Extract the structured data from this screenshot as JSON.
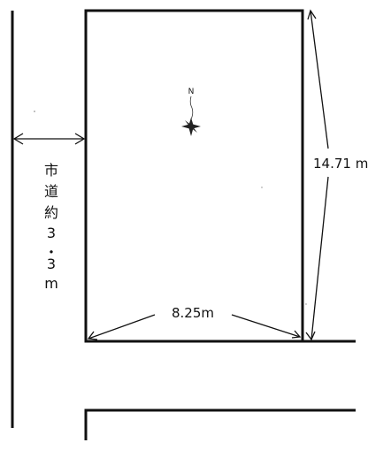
{
  "compass": {
    "north_label": "N"
  },
  "dimensions": {
    "depth_label": "14.71 m",
    "frontage_label": "8.25m"
  },
  "road": {
    "label_chars": [
      "市",
      "道",
      "約",
      "3",
      "・",
      "3",
      "m"
    ]
  }
}
